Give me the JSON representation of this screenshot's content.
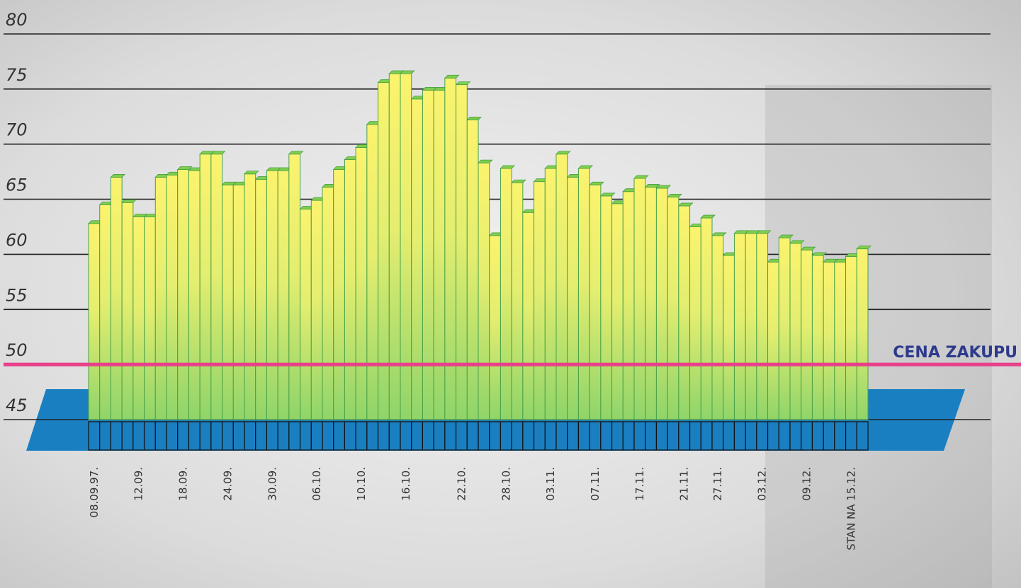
{
  "chart_data": {
    "type": "bar",
    "categories": [
      "08.09.97.",
      null,
      null,
      null,
      "12.09.",
      null,
      null,
      null,
      "18.09.",
      null,
      null,
      null,
      "24.09.",
      null,
      null,
      null,
      "30.09.",
      null,
      null,
      null,
      "06.10.",
      null,
      null,
      null,
      "10.10.",
      null,
      null,
      null,
      "16.10.",
      null,
      null,
      null,
      null,
      "22.10.",
      null,
      null,
      null,
      "28.10.",
      null,
      null,
      null,
      "03.11.",
      null,
      null,
      null,
      "07.11.",
      null,
      null,
      null,
      "17.11.",
      null,
      null,
      null,
      "21.11.",
      null,
      null,
      "27.11.",
      null,
      null,
      null,
      "03.12.",
      null,
      null,
      null,
      "09.12.",
      null,
      null,
      null,
      "STAN NA 15.12.",
      null
    ],
    "values": [
      62.8,
      64.5,
      67.0,
      64.7,
      63.4,
      63.4,
      67.0,
      67.2,
      67.7,
      67.6,
      69.1,
      69.1,
      66.3,
      66.3,
      67.3,
      66.8,
      67.6,
      67.6,
      69.1,
      64.1,
      64.9,
      66.1,
      67.7,
      68.6,
      69.7,
      71.8,
      75.6,
      76.4,
      76.4,
      74.1,
      74.9,
      74.9,
      76.0,
      75.4,
      72.2,
      68.3,
      61.7,
      67.8,
      66.5,
      63.8,
      66.6,
      67.8,
      69.1,
      67.0,
      67.8,
      66.3,
      65.3,
      64.6,
      65.7,
      66.9,
      66.1,
      66.0,
      65.2,
      64.4,
      62.5,
      63.3,
      61.7,
      59.9,
      61.9,
      61.9,
      61.9,
      59.3,
      61.5,
      61.0,
      60.4,
      59.9,
      59.3,
      59.3,
      59.8,
      60.5
    ],
    "color": "#f7f36a",
    "ylim": [
      45,
      80
    ],
    "yticks": [
      45,
      50,
      55,
      60,
      65,
      70,
      75,
      80
    ],
    "grid": true,
    "reference_line": {
      "value": 50,
      "label": "CENA ZAKUPU",
      "color": "#e8408a"
    }
  }
}
